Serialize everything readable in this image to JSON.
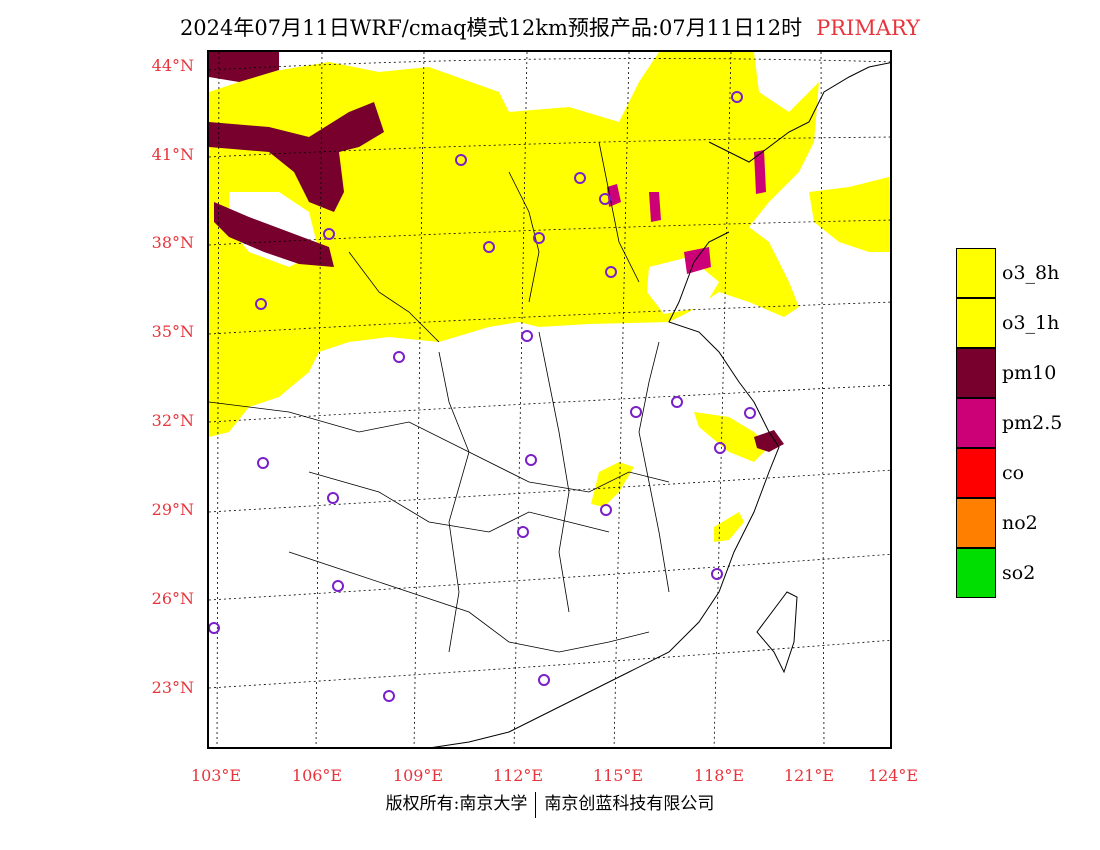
{
  "header": {
    "title": "2024年07月11日WRF/cmaq模式12km预报产品:07月11日12时",
    "pollutant_label": "PRIMARY"
  },
  "map": {
    "lat_labels": [
      "44°N",
      "41°N",
      "38°N",
      "35°N",
      "32°N",
      "29°N",
      "26°N",
      "23°N"
    ],
    "lon_labels": [
      "103°E",
      "106°E",
      "109°E",
      "112°E",
      "115°E",
      "118°E",
      "121°E",
      "124°E"
    ],
    "colors": {
      "o3_8h": "#ffff00",
      "pm10": "#78002d",
      "pm25": "#cc0077",
      "station_marker": "#7a1fc9",
      "label_red": "#e8343c"
    }
  },
  "legend": {
    "items": [
      {
        "label": "o3_8h",
        "color": "#ffff00"
      },
      {
        "label": "o3_1h",
        "color": "#ffff00"
      },
      {
        "label": "pm10",
        "color": "#78002d"
      },
      {
        "label": "pm2.5",
        "color": "#cc0077"
      },
      {
        "label": "co",
        "color": "#ff0000"
      },
      {
        "label": "no2",
        "color": "#ff7f00"
      },
      {
        "label": "so2",
        "color": "#00dd00"
      }
    ]
  },
  "footer": {
    "left": "版权所有:南京大学",
    "right": "南京创蓝科技有限公司"
  }
}
